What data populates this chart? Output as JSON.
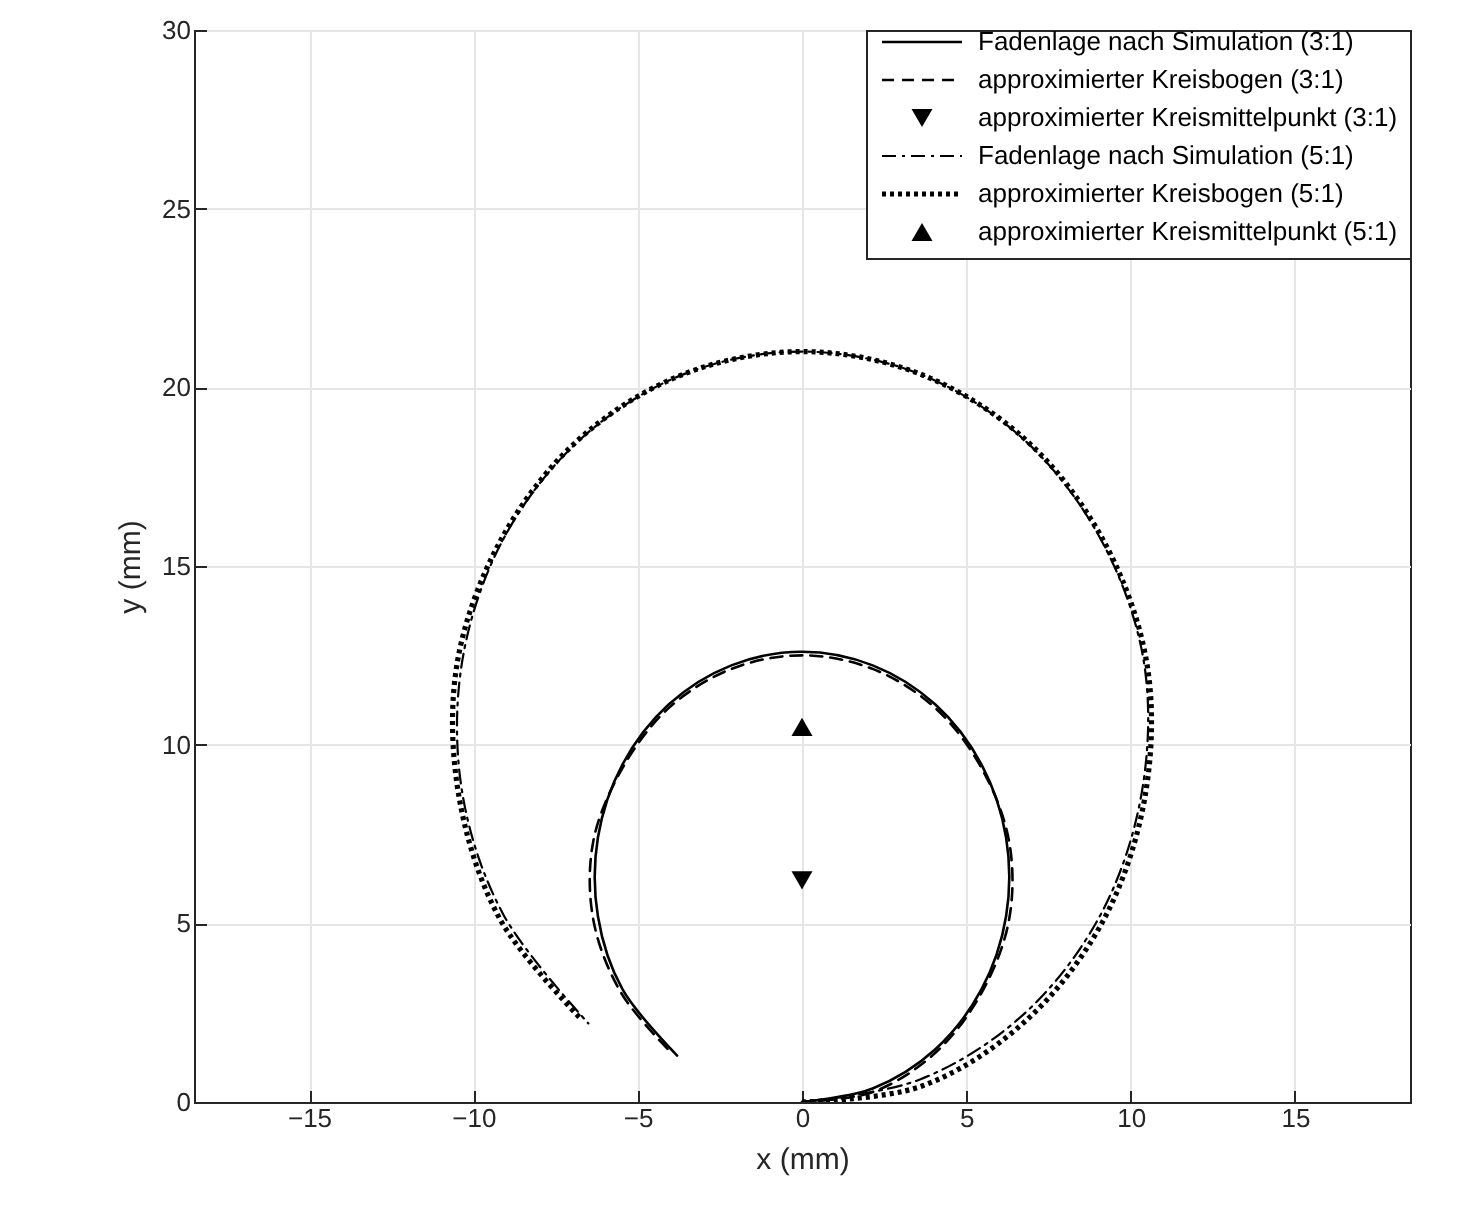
{
  "chart_data": {
    "type": "line",
    "xlabel": "x (mm)",
    "ylabel": "y (mm)",
    "xlim": [
      -18.5,
      18.5
    ],
    "xticks": [
      -15,
      -10,
      -5,
      0,
      5,
      10,
      15
    ],
    "ylim": [
      0,
      30
    ],
    "yticks": [
      0,
      5,
      10,
      15,
      20,
      25,
      30
    ],
    "grid": true,
    "legend": "top right",
    "series": [
      {
        "name": "Fadenlage nach Simulation (3:1)",
        "type": "line",
        "line_style": "solid",
        "color": "#000000",
        "x": [
          0,
          2.15,
          4.05,
          5.46,
          6.21,
          6.21,
          5.46,
          4.05,
          2.15,
          0,
          -2.15,
          -4.05,
          -5.46,
          -6.21,
          -6.21,
          -5.46,
          -3.8
        ],
        "values": [
          0,
          0.38,
          1.47,
          3.15,
          5.2,
          7.4,
          9.45,
          11.13,
          12.22,
          12.6,
          12.22,
          11.13,
          9.45,
          7.4,
          5.2,
          3.15,
          1.3
        ]
      },
      {
        "name": "approximierter Kreisbogen (3:1)",
        "type": "line",
        "line_style": "dashed",
        "color": "#000000",
        "x": [
          0,
          2.15,
          4.05,
          5.46,
          6.3,
          6.3,
          5.46,
          4.05,
          2.15,
          0,
          -2.15,
          -4.05,
          -5.46,
          -6.35,
          -6.35,
          -5.5,
          -4.0
        ],
        "values": [
          0,
          0.28,
          1.37,
          3.05,
          5.1,
          7.3,
          9.35,
          11.03,
          12.12,
          12.5,
          12.12,
          11.03,
          9.35,
          7.3,
          5.1,
          3.05,
          1.4
        ]
      },
      {
        "name": "approximierter Kreismittelpunkt (3:1)",
        "type": "scatter",
        "marker": "triangle-down",
        "color": "#000000",
        "x": [
          0
        ],
        "values": [
          6.2
        ]
      },
      {
        "name": "Fadenlage nach Simulation (5:1)",
        "type": "line",
        "line_style": "dashdot",
        "color": "#000000",
        "x": [
          0,
          3.59,
          6.75,
          9.09,
          10.34,
          10.4,
          9.09,
          6.75,
          3.59,
          0,
          -3.59,
          -6.75,
          -9.09,
          -10.34,
          -10.34,
          -9.09,
          -6.5
        ],
        "values": [
          0,
          0.63,
          2.46,
          5.25,
          8.67,
          12.33,
          15.75,
          18.54,
          20.37,
          21,
          20.37,
          18.54,
          15.75,
          12.33,
          8.67,
          5.25,
          2.2
        ]
      },
      {
        "name": "approximierter Kreisbogen (5:1)",
        "type": "line",
        "line_style": "dotted",
        "color": "#000000",
        "x": [
          0,
          3.63,
          6.82,
          9.18,
          10.44,
          10.5,
          9.18,
          6.82,
          3.63,
          0,
          -3.63,
          -6.82,
          -9.18,
          -10.5,
          -10.44,
          -9.18,
          -6.7
        ],
        "values": [
          0,
          0.44,
          2.28,
          5.1,
          8.56,
          12.24,
          15.7,
          18.52,
          20.36,
          21,
          20.36,
          18.52,
          15.7,
          12.24,
          8.56,
          5.1,
          2.3
        ]
      },
      {
        "name": "approximierter Kreismittelpunkt (5:1)",
        "type": "scatter",
        "marker": "triangle-up",
        "color": "#000000",
        "x": [
          0
        ],
        "values": [
          10.5
        ]
      }
    ]
  }
}
